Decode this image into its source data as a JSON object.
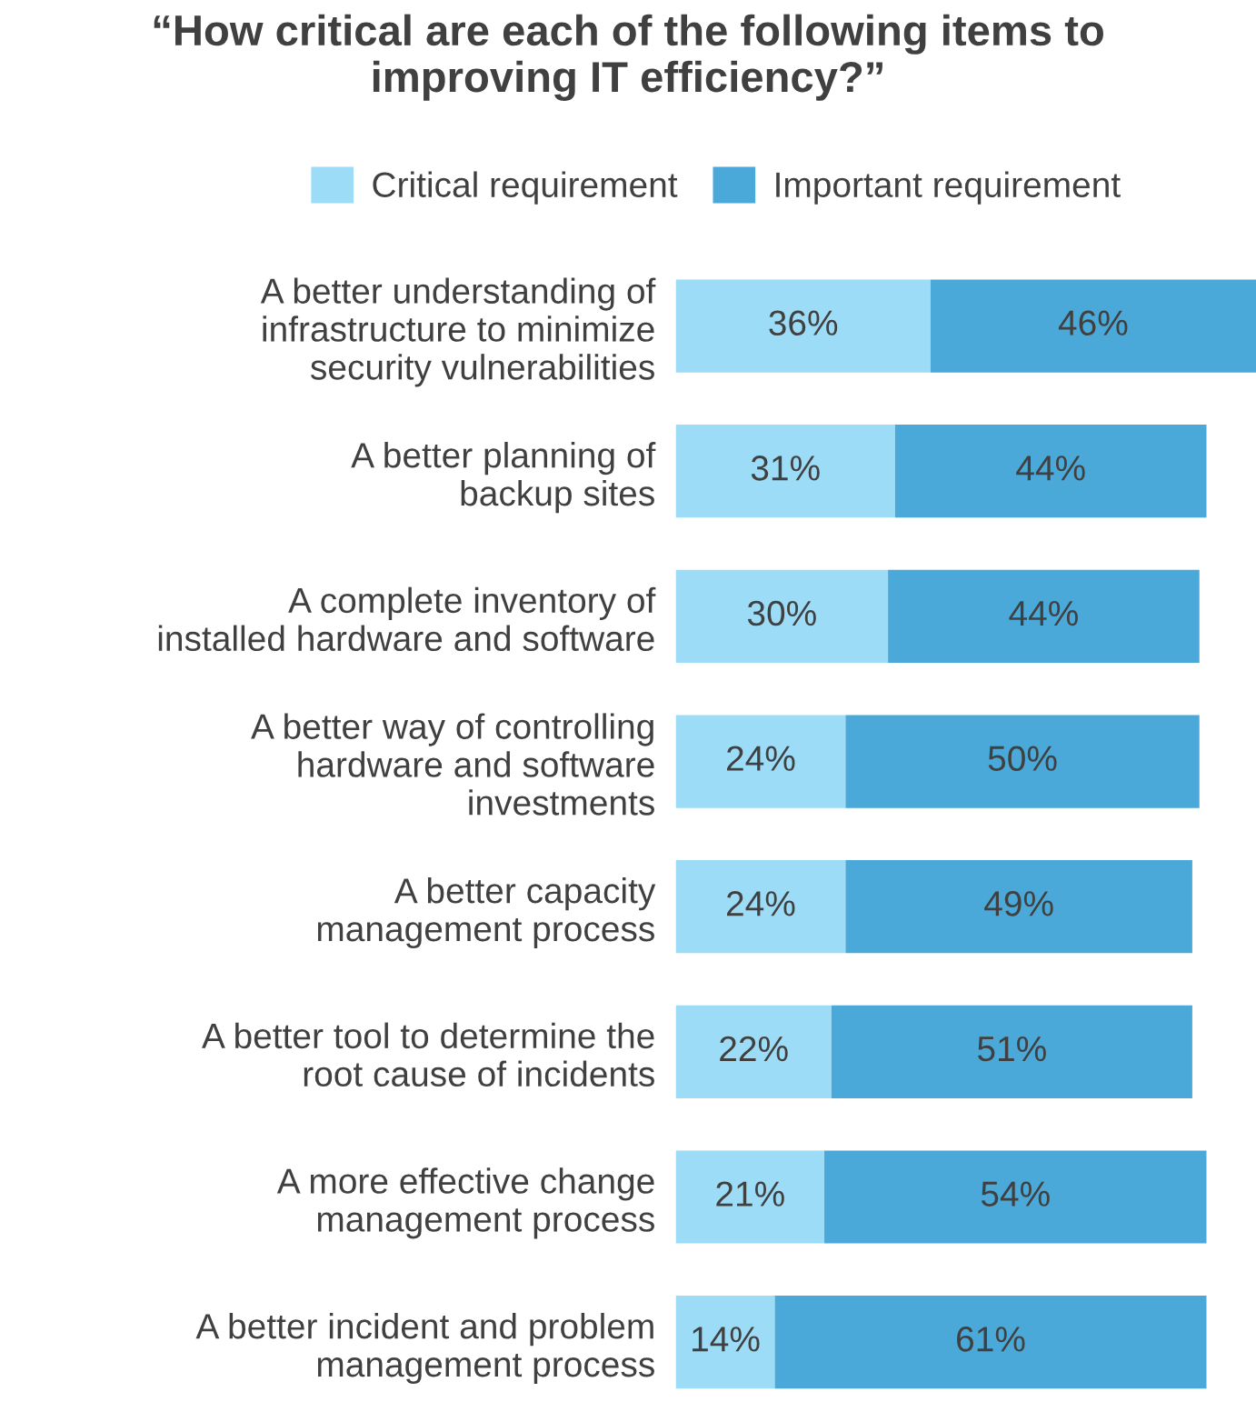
{
  "chart_data": {
    "type": "bar",
    "orientation": "horizontal",
    "stacked": true,
    "title": "“How critical are each of the following items to\nimproving IT efficiency?”",
    "categories": [
      "A better understanding of\ninfrastructure to minimize\nsecurity vulnerabilities",
      "A better planning of\nbackup sites",
      "A complete inventory of\ninstalled hardware and software",
      "A better way of controlling\nhardware and software\ninvestments",
      "A better capacity\nmanagement process",
      "A better tool to determine the\nroot cause of incidents",
      "A more effective change\nmanagement process",
      "A better incident and problem\nmanagement process"
    ],
    "series": [
      {
        "name": "Critical requirement",
        "color": "#9ddcf6",
        "values": [
          36,
          31,
          30,
          24,
          24,
          22,
          21,
          14
        ],
        "value_labels": [
          "36%",
          "31%",
          "30%",
          "24%",
          "24%",
          "22%",
          "21%",
          "14%"
        ]
      },
      {
        "name": "Important requirement",
        "color": "#4aa9d8",
        "values": [
          46,
          44,
          44,
          50,
          49,
          51,
          54,
          61
        ],
        "value_labels": [
          "46%",
          "44%",
          "44%",
          "50%",
          "49%",
          "51%",
          "54%",
          "61%"
        ]
      }
    ],
    "legend": "top",
    "grid": false
  }
}
